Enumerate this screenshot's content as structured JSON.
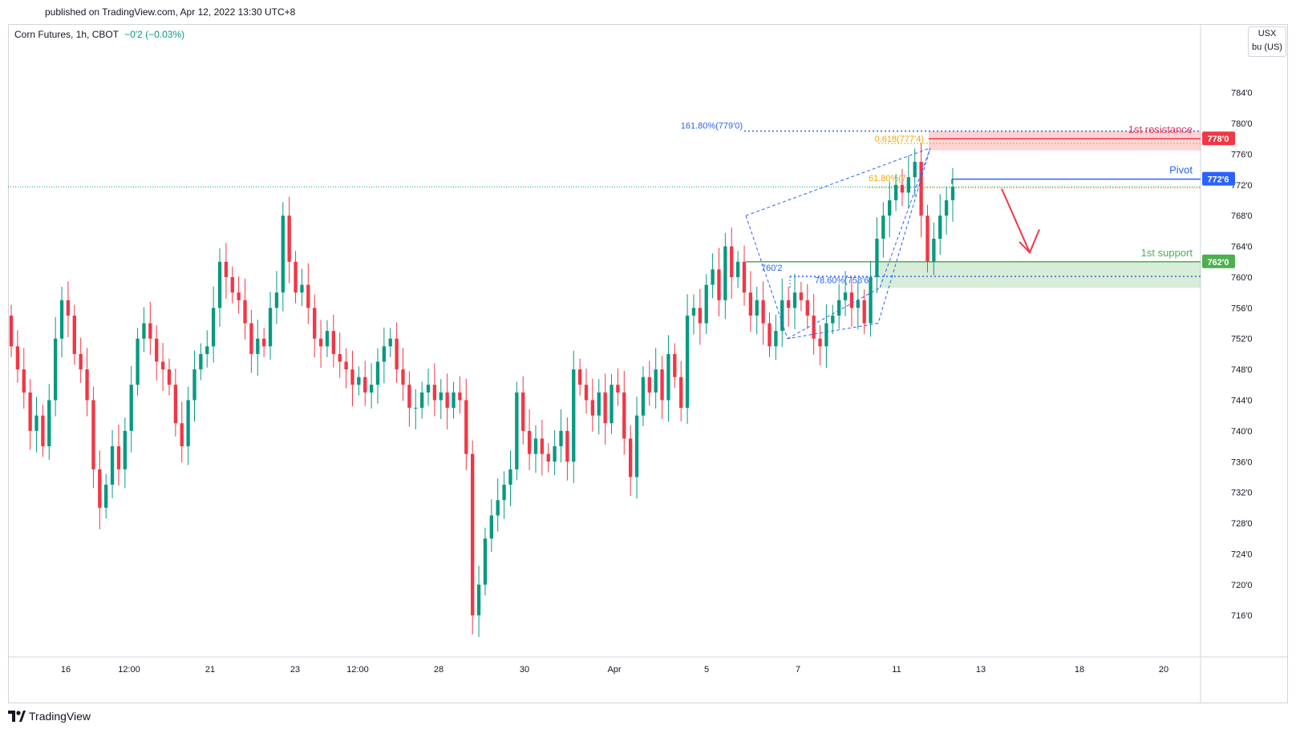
{
  "header": {
    "published": "published on TradingView.com, Apr 12, 2022 13:30 UTC+8",
    "symbol": "Corn Futures, 1h, CBOT",
    "change": "−0′2 (−0.03%)"
  },
  "scale": {
    "currency": "USX",
    "unit": "bu (US)"
  },
  "footer": {
    "brand": "TradingView",
    "logo_icon": "tradingview-logo-icon"
  },
  "chart_data": {
    "type": "candlestick",
    "x_ticks": [
      "16",
      "12:00",
      "21",
      "23",
      "12:00",
      "28",
      "30",
      "Apr",
      "5",
      "7",
      "11",
      "13",
      "18",
      "20"
    ],
    "y_ticks": [
      "784′0",
      "780′0",
      "776′0",
      "772′0",
      "768′0",
      "764′0",
      "760′0",
      "756′0",
      "752′0",
      "748′0",
      "744′0",
      "740′0",
      "736′0",
      "732′0",
      "728′0",
      "724′0",
      "720′0",
      "716′0"
    ],
    "ylim": [
      710.6,
      789.8
    ],
    "levels": {
      "resistance": {
        "label": "1st resistance",
        "value": 778.0,
        "badge": "778′0",
        "zone": [
          776.5,
          779.0
        ],
        "color": "#f23645"
      },
      "pivot": {
        "label": "Pivot",
        "value": 772.75,
        "badge": "772′6",
        "color": "#2962ff"
      },
      "support": {
        "label": "1st support",
        "value": 762.0,
        "badge": "762′0",
        "zone": [
          758.6,
          762.0
        ],
        "color": "#4caf50"
      }
    },
    "annotations": {
      "fib_161": "161.80%(779′0)",
      "fib_0618": "0.618(777′4)",
      "fib_6180": "61.80%(7",
      "fib_7860": "78.60%(758′6)",
      "swing_760": "760′2"
    },
    "last_price": 771.75,
    "ohlc_seed": [
      [
        755,
        751
      ],
      [
        751,
        748
      ],
      [
        748,
        745
      ],
      [
        745,
        740
      ],
      [
        740,
        742
      ],
      [
        742,
        738
      ],
      [
        738,
        744
      ],
      [
        744,
        752
      ],
      [
        752,
        757
      ],
      [
        757,
        755
      ],
      [
        755,
        750
      ],
      [
        750,
        748
      ],
      [
        748,
        744
      ],
      [
        744,
        735
      ],
      [
        735,
        730
      ],
      [
        730,
        733
      ],
      [
        733,
        738
      ],
      [
        738,
        735
      ],
      [
        735,
        740
      ],
      [
        740,
        746
      ],
      [
        746,
        752
      ],
      [
        752,
        754
      ],
      [
        754,
        752
      ],
      [
        752,
        749
      ],
      [
        749,
        748
      ],
      [
        748,
        746
      ],
      [
        746,
        741
      ],
      [
        741,
        738
      ],
      [
        738,
        744
      ],
      [
        744,
        748
      ],
      [
        748,
        750
      ],
      [
        750,
        751
      ],
      [
        751,
        756
      ],
      [
        756,
        762
      ],
      [
        762,
        760
      ],
      [
        760,
        758
      ],
      [
        758,
        757
      ],
      [
        757,
        754
      ],
      [
        754,
        750
      ],
      [
        750,
        752
      ],
      [
        752,
        751
      ],
      [
        751,
        756
      ],
      [
        756,
        758
      ],
      [
        758,
        768
      ],
      [
        768,
        762
      ],
      [
        762,
        758
      ],
      [
        758,
        759
      ],
      [
        759,
        756
      ],
      [
        756,
        752
      ],
      [
        752,
        751
      ],
      [
        751,
        753
      ],
      [
        753,
        750
      ],
      [
        750,
        749
      ],
      [
        749,
        748
      ],
      [
        748,
        746
      ],
      [
        746,
        747
      ],
      [
        747,
        745
      ],
      [
        745,
        746
      ],
      [
        746,
        749
      ],
      [
        749,
        751
      ],
      [
        751,
        752
      ],
      [
        752,
        748
      ],
      [
        748,
        746
      ],
      [
        746,
        743
      ],
      [
        743,
        743
      ],
      [
        743,
        745
      ],
      [
        745,
        746
      ],
      [
        746,
        744
      ],
      [
        744,
        745
      ],
      [
        745,
        743
      ],
      [
        743,
        745
      ],
      [
        745,
        744
      ],
      [
        744,
        737
      ],
      [
        737,
        716
      ],
      [
        716,
        720
      ],
      [
        720,
        726
      ],
      [
        726,
        729
      ],
      [
        729,
        731
      ],
      [
        731,
        733
      ],
      [
        733,
        735
      ],
      [
        735,
        745
      ],
      [
        745,
        740
      ],
      [
        740,
        737
      ],
      [
        737,
        739
      ],
      [
        739,
        737
      ],
      [
        737,
        736
      ],
      [
        736,
        738
      ],
      [
        738,
        740
      ],
      [
        740,
        736
      ],
      [
        736,
        748
      ],
      [
        748,
        746
      ],
      [
        746,
        744
      ],
      [
        744,
        742
      ],
      [
        742,
        745
      ],
      [
        745,
        741
      ],
      [
        741,
        746
      ],
      [
        746,
        745
      ],
      [
        745,
        739
      ],
      [
        739,
        734
      ],
      [
        734,
        742
      ],
      [
        742,
        747
      ],
      [
        747,
        745
      ],
      [
        745,
        748
      ],
      [
        748,
        744
      ],
      [
        744,
        750
      ],
      [
        750,
        747
      ],
      [
        747,
        743
      ],
      [
        743,
        755
      ],
      [
        755,
        756
      ],
      [
        756,
        754
      ],
      [
        754,
        759
      ],
      [
        759,
        761
      ],
      [
        761,
        757
      ],
      [
        757,
        764
      ],
      [
        764,
        760
      ],
      [
        760,
        762
      ],
      [
        762,
        758
      ],
      [
        758,
        755
      ],
      [
        755,
        757
      ],
      [
        757,
        754
      ],
      [
        754,
        751
      ],
      [
        751,
        753
      ],
      [
        753,
        757
      ],
      [
        757,
        756
      ],
      [
        756,
        758
      ],
      [
        758,
        757
      ],
      [
        757,
        755
      ],
      [
        755,
        752
      ],
      [
        752,
        751
      ],
      [
        751,
        754
      ],
      [
        754,
        755
      ],
      [
        755,
        757
      ],
      [
        757,
        758
      ],
      [
        758,
        756
      ],
      [
        756,
        757
      ],
      [
        757,
        754
      ],
      [
        754,
        760
      ],
      [
        760,
        765
      ],
      [
        765,
        768
      ],
      [
        768,
        770
      ],
      [
        770,
        772
      ],
      [
        772,
        771
      ],
      [
        771,
        773
      ],
      [
        773,
        775
      ],
      [
        775,
        768
      ],
      [
        768,
        762
      ],
      [
        762,
        765
      ],
      [
        765,
        768
      ],
      [
        768,
        770
      ],
      [
        770,
        771.75
      ]
    ]
  }
}
